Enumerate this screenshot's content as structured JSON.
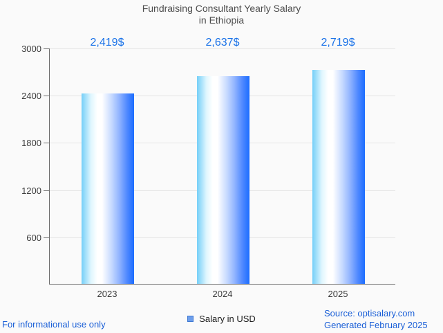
{
  "title": {
    "line1": "Fundraising Consultant Yearly Salary",
    "line2": "in Ethiopia"
  },
  "chart_data": {
    "type": "bar",
    "title": "Fundraising Consultant Yearly Salary in Ethiopia",
    "categories": [
      "2023",
      "2024",
      "2025"
    ],
    "values": [
      2419,
      2637,
      2719
    ],
    "value_labels": [
      "2,419$",
      "2,637$",
      "2,719$"
    ],
    "series_name": "Salary in USD",
    "xlabel": "",
    "ylabel": "",
    "ylim": [
      0,
      3000
    ],
    "yticks": [
      600,
      1200,
      1800,
      2400,
      3000
    ],
    "grid": true,
    "legend_position": "bottom-center"
  },
  "legend": {
    "label": "Salary in USD"
  },
  "footer": {
    "disclaimer": "For informational use only",
    "source": "Source: optisalary.com",
    "generated": "Generated February 2025"
  },
  "colors": {
    "background": "#fafafa",
    "value_label_blue": "#1a72e8",
    "footer_blue": "#1a5fd7",
    "title_text": "#4d4d4d",
    "tick_text": "#3d3d3d",
    "axis_line": "#6e6e6e",
    "gridline": "#e4e4e4",
    "legend_fill": "#6d9eeb",
    "legend_border": "#3e78d2",
    "bar_gradient": [
      "#74cff8",
      "#dff6fe",
      "#ffffff",
      "#ffffff",
      "#cadcff",
      "#94b6ff",
      "#4e88ff",
      "#1b6dff"
    ],
    "bar_gradient_stops": [
      "0%",
      "18%",
      "30%",
      "39%",
      "56%",
      "71%",
      "87%",
      "100%"
    ]
  }
}
